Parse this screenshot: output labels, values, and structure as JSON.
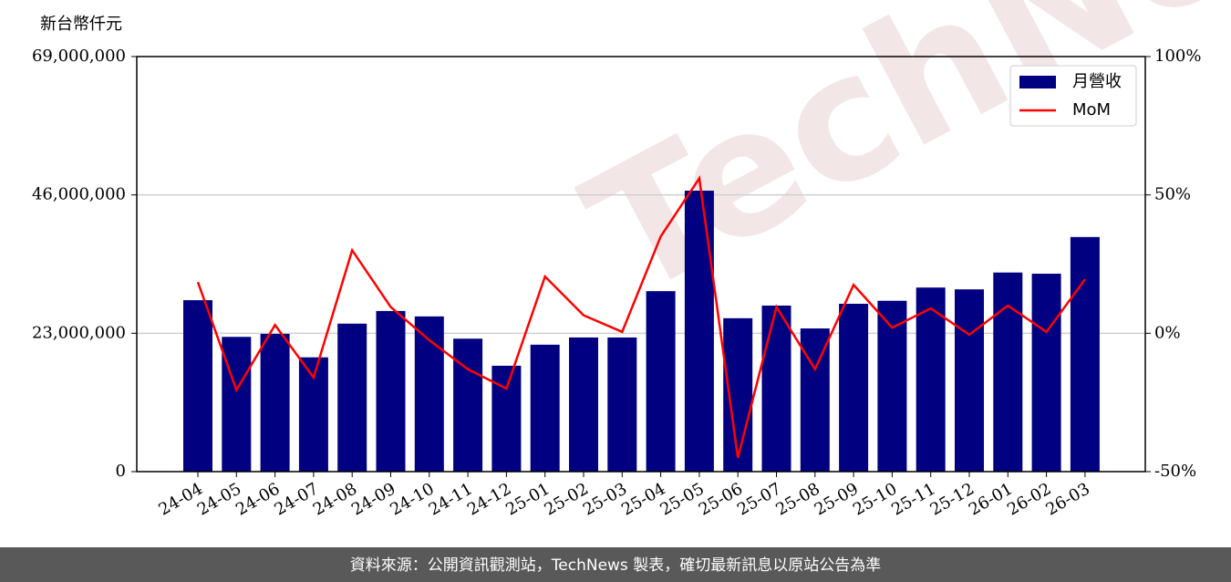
{
  "chart_data": {
    "type": "bar_line",
    "y_label": "新台幣仟元",
    "footer": "資料來源：公開資訊觀測站，TechNews 製表，確切最新訊息以原站公告為準",
    "watermark": "TechNews",
    "categories": [
      "24-04",
      "24-05",
      "24-06",
      "24-07",
      "24-08",
      "24-09",
      "24-10",
      "24-11",
      "24-12",
      "25-01",
      "25-02",
      "25-03",
      "25-04",
      "25-05",
      "25-06",
      "25-07",
      "25-08",
      "25-09",
      "25-10",
      "25-11",
      "25-12",
      "26-01",
      "26-02",
      "26-03"
    ],
    "series": [
      {
        "name": "月營收",
        "type": "bar",
        "color": "#000080",
        "values": [
          28500000,
          22400000,
          22900000,
          19000000,
          24600000,
          26700000,
          25800000,
          22100000,
          17600000,
          21100000,
          22300000,
          22300000,
          30000000,
          46700000,
          25500000,
          27600000,
          23800000,
          27900000,
          28400000,
          30600000,
          30300000,
          33100000,
          32900000,
          39000000
        ]
      },
      {
        "name": "MoM",
        "type": "line",
        "color": "#ff0000",
        "axis": "y2",
        "values": [
          18.5,
          -20.5,
          3,
          -16,
          30,
          9.5,
          -2.5,
          -13,
          -20,
          20.5,
          6.5,
          0.5,
          35,
          56,
          -45,
          9.5,
          -13,
          17.5,
          2,
          9,
          -0.5,
          10,
          0.5,
          19.5
        ]
      }
    ],
    "ylim": [
      0,
      69000000
    ],
    "yticks": [
      0,
      {
        "value": 23000000,
        "label": "23,000,000"
      },
      {
        "value": 46000000,
        "label": "46,000,000"
      },
      {
        "value": 69000000,
        "label": "69,000,000"
      }
    ],
    "y2lim": [
      -50,
      100
    ],
    "y2ticks": [
      {
        "value": -50,
        "label": "-50%"
      },
      {
        "value": 0,
        "label": "0%"
      },
      {
        "value": 50,
        "label": "50%"
      },
      {
        "value": 100,
        "label": "100%"
      }
    ],
    "grid": true,
    "legend": "upper right"
  }
}
